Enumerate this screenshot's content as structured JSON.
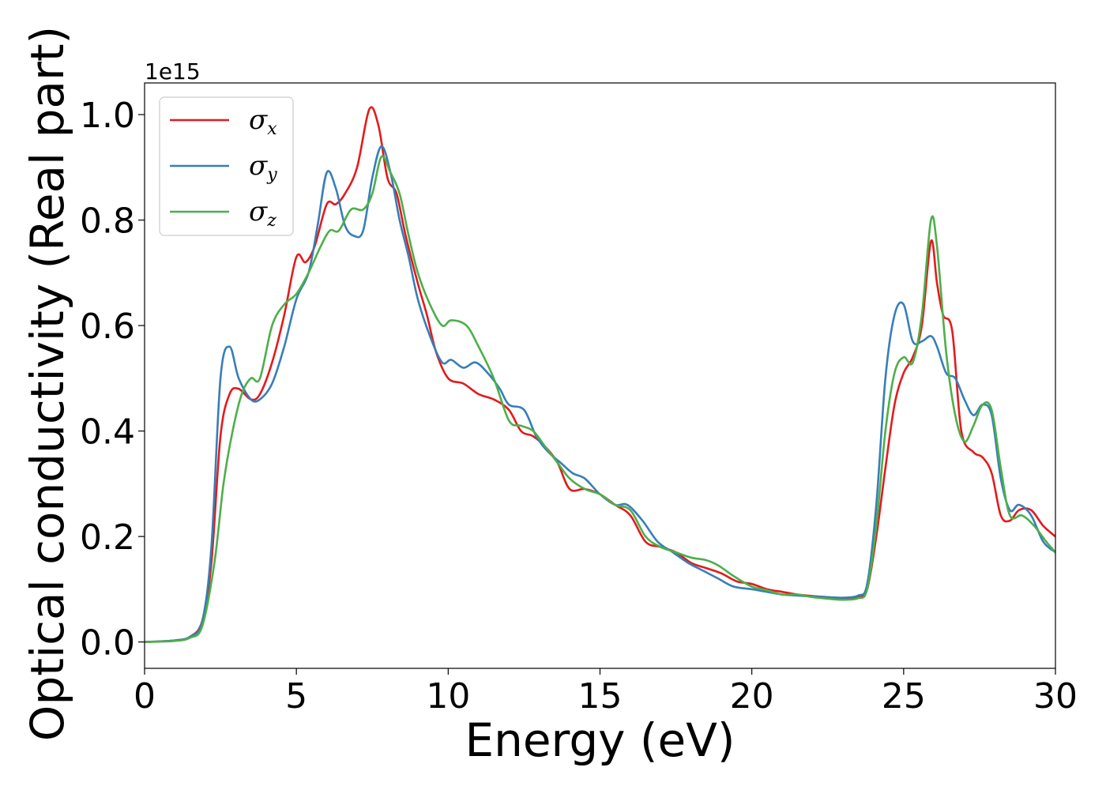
{
  "chart_data": {
    "type": "line",
    "title": "",
    "xlabel": "Energy (eV)",
    "ylabel": "Optical conductivity (Real part)",
    "y_offset_label": "1e15",
    "xlim": [
      0,
      30
    ],
    "ylim": [
      -0.05,
      1.06
    ],
    "x_ticks": [
      0,
      5,
      10,
      15,
      20,
      25,
      30
    ],
    "x_tick_labels": [
      "0",
      "5",
      "10",
      "15",
      "20",
      "25",
      "30"
    ],
    "y_ticks": [
      0.0,
      0.2,
      0.4,
      0.6,
      0.8,
      1.0
    ],
    "y_tick_labels": [
      "0.0",
      "0.2",
      "0.4",
      "0.6",
      "0.8",
      "1.0"
    ],
    "grid": false,
    "legend_position": "upper-left",
    "series": [
      {
        "name": "σx",
        "legend_symbol": "σ",
        "legend_subscript": "x",
        "color": "#e41a1c",
        "points": [
          [
            0,
            0
          ],
          [
            1,
            0.003
          ],
          [
            1.5,
            0.01
          ],
          [
            1.9,
            0.04
          ],
          [
            2.2,
            0.15
          ],
          [
            2.5,
            0.39
          ],
          [
            2.8,
            0.47
          ],
          [
            3.1,
            0.48
          ],
          [
            3.5,
            0.46
          ],
          [
            3.8,
            0.47
          ],
          [
            4.2,
            0.53
          ],
          [
            4.6,
            0.62
          ],
          [
            5.0,
            0.73
          ],
          [
            5.3,
            0.72
          ],
          [
            5.6,
            0.75
          ],
          [
            6.0,
            0.83
          ],
          [
            6.3,
            0.83
          ],
          [
            6.6,
            0.85
          ],
          [
            7.0,
            0.9
          ],
          [
            7.4,
            1.01
          ],
          [
            7.7,
            0.98
          ],
          [
            8.0,
            0.88
          ],
          [
            8.3,
            0.85
          ],
          [
            8.6,
            0.77
          ],
          [
            9.0,
            0.68
          ],
          [
            9.3,
            0.62
          ],
          [
            9.6,
            0.55
          ],
          [
            10.0,
            0.5
          ],
          [
            10.5,
            0.49
          ],
          [
            11.0,
            0.47
          ],
          [
            11.5,
            0.46
          ],
          [
            12.0,
            0.44
          ],
          [
            12.4,
            0.4
          ],
          [
            12.8,
            0.39
          ],
          [
            13.2,
            0.37
          ],
          [
            13.6,
            0.34
          ],
          [
            14.0,
            0.29
          ],
          [
            14.5,
            0.29
          ],
          [
            15.0,
            0.28
          ],
          [
            15.5,
            0.26
          ],
          [
            16.0,
            0.24
          ],
          [
            16.5,
            0.19
          ],
          [
            17.0,
            0.18
          ],
          [
            17.5,
            0.17
          ],
          [
            18.0,
            0.15
          ],
          [
            18.5,
            0.14
          ],
          [
            19.0,
            0.13
          ],
          [
            19.5,
            0.115
          ],
          [
            20.0,
            0.11
          ],
          [
            20.5,
            0.1
          ],
          [
            21.0,
            0.095
          ],
          [
            21.5,
            0.09
          ],
          [
            22.0,
            0.087
          ],
          [
            22.5,
            0.085
          ],
          [
            23.0,
            0.083
          ],
          [
            23.5,
            0.085
          ],
          [
            23.8,
            0.1
          ],
          [
            24.1,
            0.2
          ],
          [
            24.4,
            0.33
          ],
          [
            24.7,
            0.45
          ],
          [
            25.0,
            0.51
          ],
          [
            25.3,
            0.54
          ],
          [
            25.6,
            0.6
          ],
          [
            25.9,
            0.76
          ],
          [
            26.1,
            0.68
          ],
          [
            26.3,
            0.62
          ],
          [
            26.6,
            0.59
          ],
          [
            26.9,
            0.4
          ],
          [
            27.3,
            0.36
          ],
          [
            27.6,
            0.35
          ],
          [
            27.9,
            0.32
          ],
          [
            28.2,
            0.24
          ],
          [
            28.5,
            0.23
          ],
          [
            28.8,
            0.25
          ],
          [
            29.2,
            0.25
          ],
          [
            29.6,
            0.22
          ],
          [
            30.0,
            0.2
          ]
        ]
      },
      {
        "name": "σy",
        "legend_symbol": "σ",
        "legend_subscript": "y",
        "color": "#377eb8",
        "points": [
          [
            0,
            0
          ],
          [
            1,
            0.003
          ],
          [
            1.5,
            0.01
          ],
          [
            1.9,
            0.04
          ],
          [
            2.2,
            0.18
          ],
          [
            2.5,
            0.5
          ],
          [
            2.8,
            0.56
          ],
          [
            3.1,
            0.5
          ],
          [
            3.5,
            0.46
          ],
          [
            3.8,
            0.46
          ],
          [
            4.2,
            0.49
          ],
          [
            4.6,
            0.56
          ],
          [
            5.0,
            0.65
          ],
          [
            5.4,
            0.7
          ],
          [
            5.7,
            0.79
          ],
          [
            6.0,
            0.89
          ],
          [
            6.3,
            0.86
          ],
          [
            6.6,
            0.79
          ],
          [
            6.9,
            0.77
          ],
          [
            7.2,
            0.78
          ],
          [
            7.5,
            0.88
          ],
          [
            7.8,
            0.94
          ],
          [
            8.1,
            0.89
          ],
          [
            8.4,
            0.8
          ],
          [
            8.7,
            0.73
          ],
          [
            9.0,
            0.65
          ],
          [
            9.4,
            0.58
          ],
          [
            9.8,
            0.53
          ],
          [
            10.1,
            0.535
          ],
          [
            10.5,
            0.52
          ],
          [
            10.9,
            0.53
          ],
          [
            11.3,
            0.51
          ],
          [
            11.7,
            0.48
          ],
          [
            12.0,
            0.45
          ],
          [
            12.5,
            0.44
          ],
          [
            12.9,
            0.39
          ],
          [
            13.3,
            0.36
          ],
          [
            13.7,
            0.34
          ],
          [
            14.1,
            0.32
          ],
          [
            14.5,
            0.31
          ],
          [
            15.0,
            0.28
          ],
          [
            15.5,
            0.26
          ],
          [
            15.9,
            0.26
          ],
          [
            16.4,
            0.23
          ],
          [
            16.9,
            0.19
          ],
          [
            17.4,
            0.17
          ],
          [
            17.9,
            0.15
          ],
          [
            18.4,
            0.135
          ],
          [
            18.9,
            0.12
          ],
          [
            19.4,
            0.105
          ],
          [
            20.0,
            0.1
          ],
          [
            20.5,
            0.095
          ],
          [
            21.0,
            0.09
          ],
          [
            21.5,
            0.088
          ],
          [
            22.0,
            0.086
          ],
          [
            22.5,
            0.085
          ],
          [
            23.0,
            0.084
          ],
          [
            23.5,
            0.088
          ],
          [
            23.8,
            0.11
          ],
          [
            24.1,
            0.26
          ],
          [
            24.4,
            0.5
          ],
          [
            24.7,
            0.62
          ],
          [
            25.0,
            0.64
          ],
          [
            25.3,
            0.57
          ],
          [
            25.6,
            0.57
          ],
          [
            25.9,
            0.58
          ],
          [
            26.1,
            0.56
          ],
          [
            26.4,
            0.51
          ],
          [
            26.7,
            0.5
          ],
          [
            27.0,
            0.46
          ],
          [
            27.3,
            0.43
          ],
          [
            27.6,
            0.45
          ],
          [
            27.9,
            0.43
          ],
          [
            28.2,
            0.31
          ],
          [
            28.5,
            0.25
          ],
          [
            28.8,
            0.26
          ],
          [
            29.2,
            0.24
          ],
          [
            29.6,
            0.19
          ],
          [
            30.0,
            0.17
          ]
        ]
      },
      {
        "name": "σz",
        "legend_symbol": "σ",
        "legend_subscript": "z",
        "color": "#4daf4a",
        "points": [
          [
            0,
            0
          ],
          [
            1,
            0.002
          ],
          [
            1.5,
            0.008
          ],
          [
            1.9,
            0.03
          ],
          [
            2.3,
            0.15
          ],
          [
            2.6,
            0.3
          ],
          [
            2.9,
            0.4
          ],
          [
            3.2,
            0.47
          ],
          [
            3.5,
            0.5
          ],
          [
            3.8,
            0.5
          ],
          [
            4.2,
            0.6
          ],
          [
            4.6,
            0.64
          ],
          [
            5.0,
            0.66
          ],
          [
            5.4,
            0.7
          ],
          [
            5.8,
            0.75
          ],
          [
            6.1,
            0.78
          ],
          [
            6.4,
            0.78
          ],
          [
            6.8,
            0.82
          ],
          [
            7.2,
            0.82
          ],
          [
            7.5,
            0.85
          ],
          [
            7.8,
            0.92
          ],
          [
            8.1,
            0.89
          ],
          [
            8.4,
            0.85
          ],
          [
            8.7,
            0.77
          ],
          [
            9.0,
            0.7
          ],
          [
            9.4,
            0.64
          ],
          [
            9.8,
            0.6
          ],
          [
            10.1,
            0.61
          ],
          [
            10.6,
            0.6
          ],
          [
            11.0,
            0.56
          ],
          [
            11.5,
            0.5
          ],
          [
            12.0,
            0.42
          ],
          [
            12.4,
            0.41
          ],
          [
            12.8,
            0.4
          ],
          [
            13.2,
            0.37
          ],
          [
            13.6,
            0.34
          ],
          [
            14.0,
            0.31
          ],
          [
            14.5,
            0.29
          ],
          [
            15.0,
            0.28
          ],
          [
            15.5,
            0.26
          ],
          [
            16.0,
            0.25
          ],
          [
            16.5,
            0.2
          ],
          [
            17.0,
            0.18
          ],
          [
            17.5,
            0.17
          ],
          [
            18.0,
            0.16
          ],
          [
            18.5,
            0.155
          ],
          [
            18.9,
            0.145
          ],
          [
            19.4,
            0.125
          ],
          [
            20.0,
            0.105
          ],
          [
            20.5,
            0.098
          ],
          [
            21.0,
            0.09
          ],
          [
            21.5,
            0.09
          ],
          [
            22.0,
            0.085
          ],
          [
            22.5,
            0.082
          ],
          [
            23.0,
            0.08
          ],
          [
            23.5,
            0.083
          ],
          [
            23.8,
            0.1
          ],
          [
            24.1,
            0.22
          ],
          [
            24.4,
            0.4
          ],
          [
            24.7,
            0.51
          ],
          [
            25.0,
            0.54
          ],
          [
            25.3,
            0.53
          ],
          [
            25.6,
            0.62
          ],
          [
            25.9,
            0.8
          ],
          [
            26.1,
            0.75
          ],
          [
            26.4,
            0.55
          ],
          [
            26.7,
            0.43
          ],
          [
            27.0,
            0.38
          ],
          [
            27.3,
            0.41
          ],
          [
            27.6,
            0.45
          ],
          [
            27.9,
            0.44
          ],
          [
            28.2,
            0.33
          ],
          [
            28.5,
            0.24
          ],
          [
            28.9,
            0.24
          ],
          [
            29.3,
            0.22
          ],
          [
            29.7,
            0.19
          ],
          [
            30.0,
            0.17
          ]
        ]
      }
    ]
  }
}
